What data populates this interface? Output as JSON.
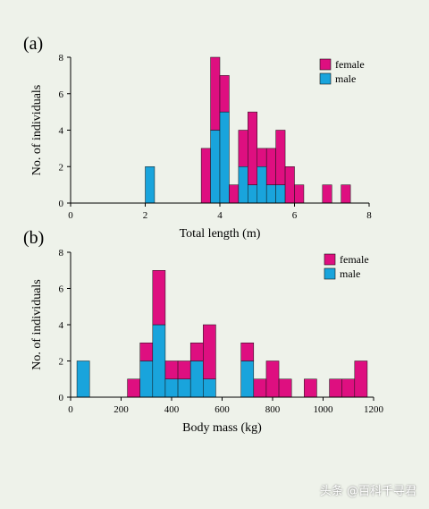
{
  "colors": {
    "female": "#de0f80",
    "male": "#19a4dc",
    "axis": "#000000",
    "background": "#eef2ea"
  },
  "watermark": "头条 @百科千寻君",
  "chart_data": [
    {
      "type": "bar",
      "stacked": true,
      "panel_label": "(a)",
      "xlabel": "Total length (m)",
      "ylabel": "No. of individuals",
      "xlim": [
        0,
        8
      ],
      "ylim": [
        0,
        8
      ],
      "xticks": [
        0,
        2,
        4,
        6,
        8
      ],
      "yticks": [
        0,
        2,
        4,
        6,
        8
      ],
      "bin_width": 0.25,
      "legend": {
        "placement": "top-right",
        "entries": [
          "female",
          "male"
        ]
      },
      "bins": [
        {
          "x": 2.0,
          "female": 0,
          "male": 2
        },
        {
          "x": 3.5,
          "female": 3,
          "male": 0
        },
        {
          "x": 3.75,
          "female": 4,
          "male": 4
        },
        {
          "x": 4.0,
          "female": 2,
          "male": 5
        },
        {
          "x": 4.25,
          "female": 1,
          "male": 0
        },
        {
          "x": 4.5,
          "female": 2,
          "male": 2
        },
        {
          "x": 4.75,
          "female": 4,
          "male": 1
        },
        {
          "x": 5.0,
          "female": 1,
          "male": 2
        },
        {
          "x": 5.25,
          "female": 2,
          "male": 1
        },
        {
          "x": 5.5,
          "female": 3,
          "male": 1
        },
        {
          "x": 5.75,
          "female": 2,
          "male": 0
        },
        {
          "x": 6.0,
          "female": 1,
          "male": 0
        },
        {
          "x": 6.75,
          "female": 1,
          "male": 0
        },
        {
          "x": 7.25,
          "female": 1,
          "male": 0
        }
      ]
    },
    {
      "type": "bar",
      "stacked": true,
      "panel_label": "(b)",
      "xlabel": "Body mass (kg)",
      "ylabel": "No. of individuals",
      "xlim": [
        0,
        1200
      ],
      "ylim": [
        0,
        8
      ],
      "xticks": [
        0,
        200,
        400,
        600,
        800,
        1000,
        1200
      ],
      "yticks": [
        0,
        2,
        4,
        6,
        8
      ],
      "bin_width": 50,
      "legend": {
        "placement": "top-right",
        "entries": [
          "female",
          "male"
        ]
      },
      "bins": [
        {
          "x": 25,
          "female": 0,
          "male": 2
        },
        {
          "x": 225,
          "female": 1,
          "male": 0
        },
        {
          "x": 275,
          "female": 1,
          "male": 2
        },
        {
          "x": 325,
          "female": 3,
          "male": 4
        },
        {
          "x": 375,
          "female": 1,
          "male": 1
        },
        {
          "x": 425,
          "female": 1,
          "male": 1
        },
        {
          "x": 475,
          "female": 1,
          "male": 2
        },
        {
          "x": 525,
          "female": 3,
          "male": 1
        },
        {
          "x": 675,
          "female": 1,
          "male": 2
        },
        {
          "x": 725,
          "female": 1,
          "male": 0
        },
        {
          "x": 775,
          "female": 2,
          "male": 0
        },
        {
          "x": 825,
          "female": 1,
          "male": 0
        },
        {
          "x": 925,
          "female": 1,
          "male": 0
        },
        {
          "x": 1025,
          "female": 1,
          "male": 0
        },
        {
          "x": 1075,
          "female": 1,
          "male": 0
        },
        {
          "x": 1125,
          "female": 2,
          "male": 0
        }
      ]
    }
  ]
}
